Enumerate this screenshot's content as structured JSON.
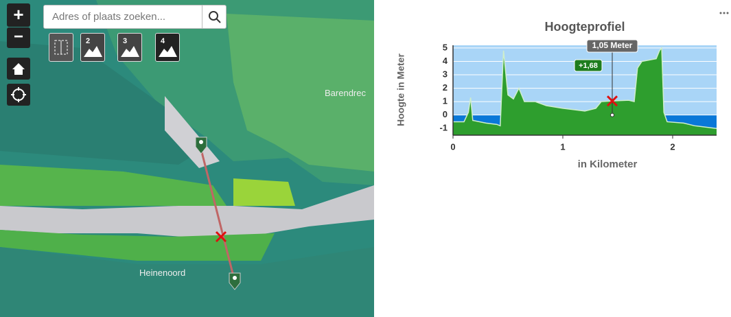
{
  "map": {
    "search_placeholder": "Adres of plaats zoeken...",
    "zoom_in": "+",
    "zoom_out": "−",
    "layer_buttons": [
      "2",
      "3",
      "4"
    ],
    "places": [
      "Barendrec",
      "Heinenoord"
    ]
  },
  "chart_data": {
    "type": "area",
    "title": "Hoogteprofiel",
    "y_label": "Hoogte in Meter",
    "x_label": "in Kilometer",
    "x": [
      0,
      0.1,
      0.14,
      0.16,
      0.18,
      0.3,
      0.4,
      0.43,
      0.46,
      0.5,
      0.55,
      0.6,
      0.65,
      0.75,
      0.85,
      1.0,
      1.2,
      1.3,
      1.35,
      1.45,
      1.6,
      1.65,
      1.68,
      1.72,
      1.85,
      1.88,
      1.9,
      1.92,
      1.95,
      2.1,
      2.2,
      2.3,
      2.4
    ],
    "values": [
      -0.5,
      -0.5,
      0.2,
      1.3,
      -0.4,
      -0.6,
      -0.7,
      -0.8,
      4.8,
      1.5,
      1.2,
      2.0,
      1.0,
      1.0,
      0.7,
      0.5,
      0.3,
      0.5,
      1.0,
      1.05,
      1.1,
      1.0,
      3.5,
      4.0,
      4.2,
      4.8,
      5.0,
      0.2,
      -0.5,
      -0.6,
      -0.8,
      -0.9,
      -1.0
    ],
    "color": "#2e9e2e",
    "water_level": 0,
    "marker": {
      "x": 1.45,
      "y": 1.05,
      "label": "1,05 Meter",
      "badge": "+1,68"
    },
    "xlim": [
      0,
      2.4
    ],
    "ylim": [
      -1.5,
      5.2
    ],
    "xticks": [
      0,
      1,
      2
    ],
    "yticks": [
      -1,
      0,
      1,
      2,
      3,
      4,
      5
    ],
    "grid": true
  }
}
